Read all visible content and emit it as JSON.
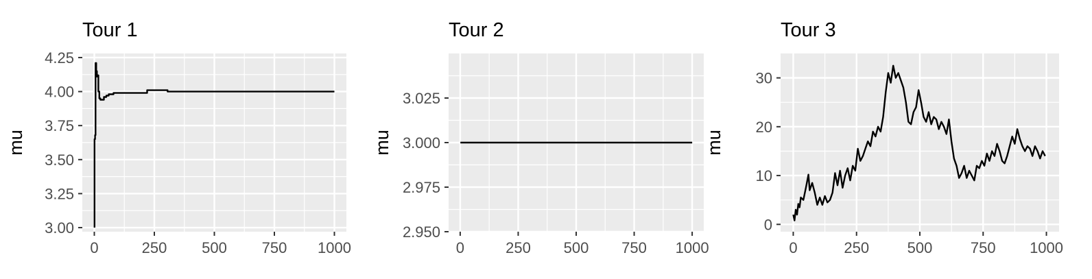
{
  "chart_data": [
    {
      "type": "line",
      "title": "Tour 1",
      "xlabel": "",
      "ylabel": "mu",
      "xlim": [
        -50,
        1050
      ],
      "ylim": [
        2.97,
        4.28
      ],
      "x_ticks": [
        0,
        250,
        500,
        750,
        1000
      ],
      "x_tick_labels": [
        "0",
        "250",
        "500",
        "750",
        "1000"
      ],
      "y_ticks": [
        3.0,
        3.25,
        3.5,
        3.75,
        4.0,
        4.25
      ],
      "y_tick_labels": [
        "3.00",
        "3.25",
        "3.50",
        "3.75",
        "4.00",
        "4.25"
      ],
      "grid": true,
      "series": [
        {
          "x": [
            1,
            1,
            3,
            3,
            5,
            5,
            8,
            8,
            11,
            11,
            14,
            14,
            17,
            17,
            21,
            21,
            25,
            25,
            40,
            40,
            50,
            50,
            60,
            60,
            80,
            80,
            150,
            150,
            220,
            220,
            305,
            305,
            1000
          ],
          "y": [
            3.0,
            3.65,
            3.65,
            3.68,
            3.68,
            4.21,
            4.21,
            4.15,
            4.15,
            4.11,
            4.11,
            4.12,
            4.12,
            4.0,
            4.0,
            3.95,
            3.95,
            3.94,
            3.94,
            3.96,
            3.96,
            3.97,
            3.97,
            3.98,
            3.98,
            3.99,
            3.99,
            3.99,
            3.99,
            4.01,
            4.01,
            4.0,
            4.0
          ]
        }
      ]
    },
    {
      "type": "line",
      "title": "Tour 2",
      "xlabel": "",
      "ylabel": "mu",
      "xlim": [
        -50,
        1050
      ],
      "ylim": [
        2.95,
        3.05
      ],
      "x_ticks": [
        0,
        250,
        500,
        750,
        1000
      ],
      "x_tick_labels": [
        "0",
        "250",
        "500",
        "750",
        "1000"
      ],
      "y_ticks": [
        2.95,
        2.975,
        3.0,
        3.025
      ],
      "y_tick_labels": [
        "2.950",
        "2.975",
        "3.000",
        "3.025"
      ],
      "grid": true,
      "series": [
        {
          "x": [
            1,
            1000
          ],
          "y": [
            3.0,
            3.0
          ]
        }
      ]
    },
    {
      "type": "line",
      "title": "Tour 3",
      "xlabel": "",
      "ylabel": "mu",
      "xlim": [
        -50,
        1050
      ],
      "ylim": [
        -1.5,
        35
      ],
      "x_ticks": [
        0,
        250,
        500,
        750,
        1000
      ],
      "x_tick_labels": [
        "0",
        "250",
        "500",
        "750",
        "1000"
      ],
      "y_ticks": [
        0,
        10,
        20,
        30
      ],
      "y_tick_labels": [
        "0",
        "10",
        "20",
        "30"
      ],
      "grid": true,
      "series": [
        {
          "x": [
            0,
            5,
            10,
            15,
            20,
            25,
            30,
            40,
            50,
            60,
            65,
            75,
            85,
            95,
            105,
            115,
            125,
            135,
            145,
            155,
            165,
            175,
            185,
            195,
            205,
            215,
            225,
            235,
            245,
            255,
            265,
            275,
            285,
            295,
            305,
            315,
            325,
            335,
            345,
            355,
            365,
            375,
            385,
            395,
            405,
            415,
            425,
            435,
            445,
            455,
            465,
            475,
            485,
            495,
            505,
            515,
            525,
            535,
            545,
            555,
            565,
            575,
            585,
            595,
            605,
            615,
            625,
            635,
            645,
            655,
            665,
            675,
            685,
            695,
            705,
            715,
            725,
            735,
            745,
            755,
            765,
            775,
            785,
            795,
            805,
            815,
            825,
            835,
            845,
            855,
            865,
            875,
            885,
            895,
            905,
            915,
            925,
            935,
            945,
            955,
            965,
            975,
            985,
            995
          ],
          "y": [
            2,
            0.8,
            3,
            2,
            4.2,
            3.5,
            5.5,
            5,
            7.5,
            10.2,
            7,
            8.5,
            6.5,
            4,
            5.5,
            4,
            5.8,
            4.5,
            5,
            6.5,
            10.5,
            8,
            11,
            7.5,
            10,
            11.5,
            9,
            12,
            11,
            15.5,
            13,
            14,
            15.5,
            17,
            16,
            19,
            18,
            20,
            19,
            22,
            27,
            31,
            29,
            32.5,
            30,
            31,
            29.5,
            28,
            25,
            21,
            20.5,
            23,
            24,
            27.5,
            25,
            22,
            21,
            23,
            20.5,
            22,
            21.5,
            19.5,
            21,
            20,
            18.5,
            21.5,
            17,
            13.5,
            12,
            9.5,
            10.5,
            12,
            9.5,
            11,
            10,
            9,
            12,
            11.5,
            13,
            12,
            14.5,
            13,
            15,
            14,
            16.5,
            15,
            13,
            12.5,
            14,
            16,
            18,
            16.5,
            19.5,
            17.5,
            16,
            15,
            16,
            15.5,
            14,
            16,
            15,
            13.5,
            15,
            14
          ]
        }
      ]
    }
  ]
}
